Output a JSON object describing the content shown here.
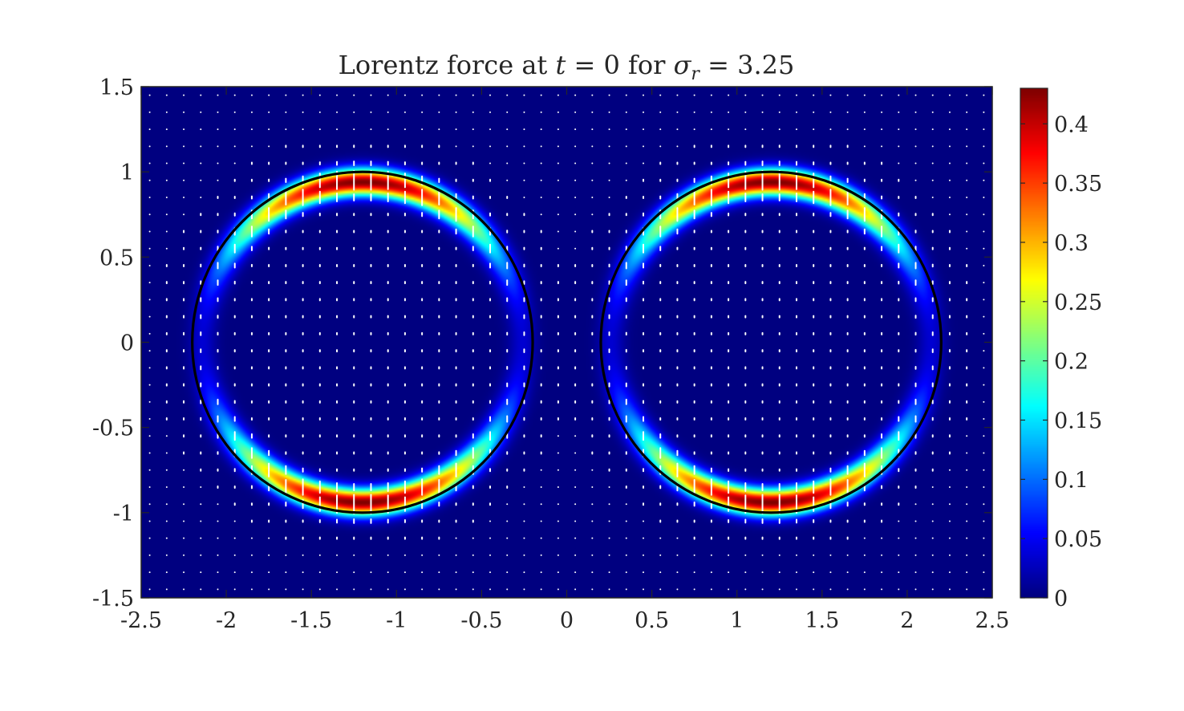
{
  "chart_data": {
    "type": "heatmap",
    "title": {
      "prefix": "Lorentz force at ",
      "t_symbol": "t",
      "t_rel": " = 0",
      "mid": " for ",
      "sigma_symbol": "σ",
      "sigma_sub": "r",
      "sigma_rel": " = 3.25"
    },
    "xlabel": "",
    "ylabel": "",
    "xlim": [
      -2.5,
      2.5
    ],
    "ylim": [
      -1.5,
      1.5
    ],
    "xticks": [
      -2.5,
      -2,
      -1.5,
      -1,
      -0.5,
      0,
      0.5,
      1,
      1.5,
      2,
      2.5
    ],
    "xtick_labels": [
      "-2.5",
      "-2",
      "-1.5",
      "-1",
      "-0.5",
      "0",
      "0.5",
      "1",
      "1.5",
      "2",
      "2.5"
    ],
    "yticks": [
      1.5,
      1,
      0.5,
      0,
      -0.5,
      -1,
      -1.5
    ],
    "ytick_labels": [
      "1.5",
      "1",
      "0.5",
      "0",
      "-0.5",
      "-1",
      "-1.5"
    ],
    "colormap": "jet",
    "colorbar": {
      "range": [
        0,
        0.43
      ],
      "ticks": [
        0,
        0.05,
        0.1,
        0.15,
        0.2,
        0.25,
        0.3,
        0.35,
        0.4
      ],
      "tick_labels": [
        "0",
        "0.05",
        "0.1",
        "0.15",
        "0.2",
        "0.25",
        "0.3",
        "0.35",
        "0.4"
      ]
    },
    "field_peak": 0.43,
    "circles": [
      {
        "cx": -1.2,
        "cy": 0,
        "r": 1.0
      },
      {
        "cx": 1.2,
        "cy": 0,
        "r": 1.0
      }
    ],
    "quiver": {
      "color": "#ffffff",
      "spacing": 0.1
    },
    "grid": false,
    "colors": {
      "axes": "#262626",
      "circle": "#000000",
      "background_low": "#00008f"
    }
  }
}
